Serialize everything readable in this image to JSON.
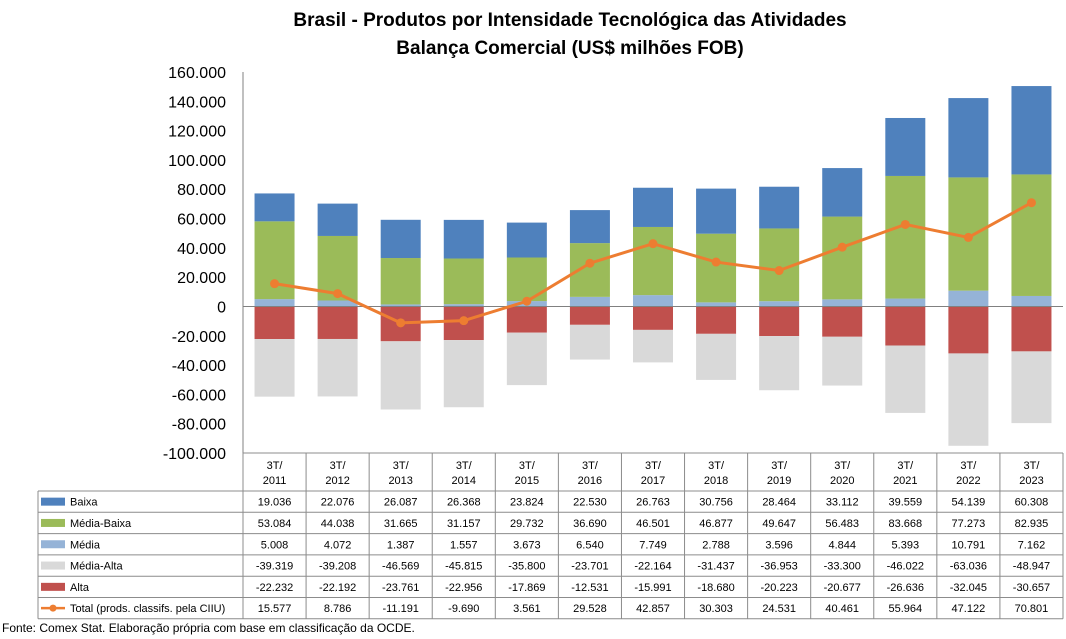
{
  "chart_data": {
    "type": "bar",
    "title": "Brasil - Produtos por Intensidade Tecnológica das Atividades",
    "subtitle": "Balança Comercial (US$ milhões FOB)",
    "categories": [
      "3T/\n2011",
      "3T/\n2012",
      "3T/\n2013",
      "3T/\n2014",
      "3T/\n2015",
      "3T/\n2016",
      "3T/\n2017",
      "3T/\n2018",
      "3T/\n2019",
      "3T/\n2020",
      "3T/\n2021",
      "3T/\n2022",
      "3T/\n2023"
    ],
    "ylim": [
      -100000,
      160000
    ],
    "yticks": [
      "-100.000",
      "-80.000",
      "-60.000",
      "-40.000",
      "-20.000",
      "0",
      "20.000",
      "40.000",
      "60.000",
      "80.000",
      "100.000",
      "120.000",
      "140.000",
      "160.000"
    ],
    "series": [
      {
        "name": "Baixa",
        "kind": "bar",
        "color": "#4f81bd",
        "values": [
          19036,
          22076,
          26087,
          26368,
          23824,
          22530,
          26763,
          30756,
          28464,
          33112,
          39559,
          54139,
          60308
        ],
        "labels": [
          "19.036",
          "22.076",
          "26.087",
          "26.368",
          "23.824",
          "22.530",
          "26.763",
          "30.756",
          "28.464",
          "33.112",
          "39.559",
          "54.139",
          "60.308"
        ]
      },
      {
        "name": "Média-Baixa",
        "kind": "bar",
        "color": "#9bbb59",
        "values": [
          53084,
          44038,
          31665,
          31157,
          29732,
          36690,
          46501,
          46877,
          49647,
          56483,
          83668,
          77273,
          82935
        ],
        "labels": [
          "53.084",
          "44.038",
          "31.665",
          "31.157",
          "29.732",
          "36.690",
          "46.501",
          "46.877",
          "49.647",
          "56.483",
          "83.668",
          "77.273",
          "82.935"
        ]
      },
      {
        "name": "Média",
        "kind": "bar",
        "color": "#95b3d7",
        "values": [
          5008,
          4072,
          1387,
          1557,
          3673,
          6540,
          7749,
          2788,
          3596,
          4844,
          5393,
          10791,
          7162
        ],
        "labels": [
          "5.008",
          "4.072",
          "1.387",
          "1.557",
          "3.673",
          "6.540",
          "7.749",
          "2.788",
          "3.596",
          "4.844",
          "5.393",
          "10.791",
          "7.162"
        ]
      },
      {
        "name": "Média-Alta",
        "kind": "bar",
        "color": "#d9d9d9",
        "values": [
          -39319,
          -39208,
          -46569,
          -45815,
          -35800,
          -23701,
          -22164,
          -31437,
          -36953,
          -33300,
          -46022,
          -63036,
          -48947
        ],
        "labels": [
          "-39.319",
          "-39.208",
          "-46.569",
          "-45.815",
          "-35.800",
          "-23.701",
          "-22.164",
          "-31.437",
          "-36.953",
          "-33.300",
          "-46.022",
          "-63.036",
          "-48.947"
        ]
      },
      {
        "name": "Alta",
        "kind": "bar",
        "color": "#c0504d",
        "values": [
          -22232,
          -22192,
          -23761,
          -22956,
          -17869,
          -12531,
          -15991,
          -18680,
          -20223,
          -20677,
          -26636,
          -32045,
          -30657
        ],
        "labels": [
          "-22.232",
          "-22.192",
          "-23.761",
          "-22.956",
          "-17.869",
          "-12.531",
          "-15.991",
          "-18.680",
          "-20.223",
          "-20.677",
          "-26.636",
          "-32.045",
          "-30.657"
        ]
      },
      {
        "name": "Total (prods. classifs. pela CIIU)",
        "kind": "line",
        "color": "#ed7d31",
        "values": [
          15577,
          8786,
          -11191,
          -9690,
          3561,
          29528,
          42857,
          30303,
          24531,
          40461,
          55964,
          47122,
          70801
        ],
        "labels": [
          "15.577",
          "8.786",
          "-11.191",
          "-9.690",
          "3.561",
          "29.528",
          "42.857",
          "30.303",
          "24.531",
          "40.461",
          "55.964",
          "47.122",
          "70.801"
        ]
      }
    ],
    "legend": "table-below",
    "grid": false
  },
  "source": "Fonte:  Comex Stat. Elaboração própria com base em classificação da OCDE."
}
